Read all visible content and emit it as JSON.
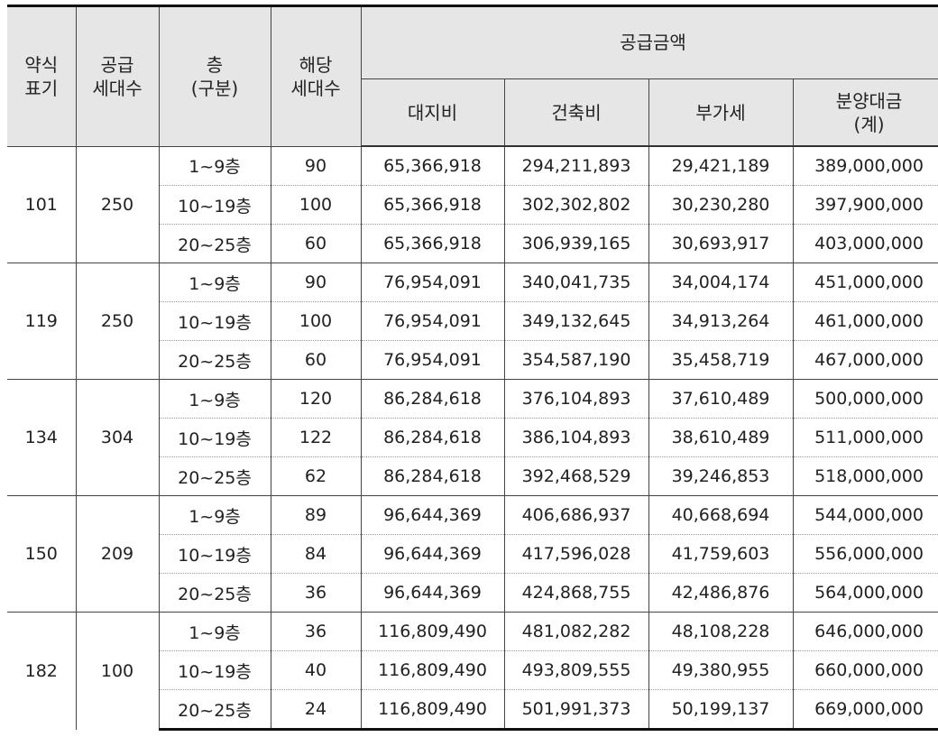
{
  "header": {
    "col0": [
      "약식",
      "표기"
    ],
    "col1": [
      "공급",
      "세대수"
    ],
    "col2": [
      "층",
      "(구분)"
    ],
    "col3": [
      "해당",
      "세대수"
    ],
    "supply_amount": "공급금액",
    "sub": {
      "land": "대지비",
      "building": "건축비",
      "vat": "부가세",
      "total": [
        "분양대금",
        "(계)"
      ]
    }
  },
  "groups": [
    {
      "type": "101",
      "households": "250",
      "rows": [
        {
          "floor": "1~9층",
          "units": "90",
          "land": "65,366,918",
          "building": "294,211,893",
          "vat": "29,421,189",
          "total": "389,000,000"
        },
        {
          "floor": "10~19층",
          "units": "100",
          "land": "65,366,918",
          "building": "302,302,802",
          "vat": "30,230,280",
          "total": "397,900,000"
        },
        {
          "floor": "20~25층",
          "units": "60",
          "land": "65,366,918",
          "building": "306,939,165",
          "vat": "30,693,917",
          "total": "403,000,000"
        }
      ]
    },
    {
      "type": "119",
      "households": "250",
      "rows": [
        {
          "floor": "1~9층",
          "units": "90",
          "land": "76,954,091",
          "building": "340,041,735",
          "vat": "34,004,174",
          "total": "451,000,000"
        },
        {
          "floor": "10~19층",
          "units": "100",
          "land": "76,954,091",
          "building": "349,132,645",
          "vat": "34,913,264",
          "total": "461,000,000"
        },
        {
          "floor": "20~25층",
          "units": "60",
          "land": "76,954,091",
          "building": "354,587,190",
          "vat": "35,458,719",
          "total": "467,000,000"
        }
      ]
    },
    {
      "type": "134",
      "households": "304",
      "rows": [
        {
          "floor": "1~9층",
          "units": "120",
          "land": "86,284,618",
          "building": "376,104,893",
          "vat": "37,610,489",
          "total": "500,000,000"
        },
        {
          "floor": "10~19층",
          "units": "122",
          "land": "86,284,618",
          "building": "386,104,893",
          "vat": "38,610,489",
          "total": "511,000,000"
        },
        {
          "floor": "20~25층",
          "units": "62",
          "land": "86,284,618",
          "building": "392,468,529",
          "vat": "39,246,853",
          "total": "518,000,000"
        }
      ]
    },
    {
      "type": "150",
      "households": "209",
      "rows": [
        {
          "floor": "1~9층",
          "units": "89",
          "land": "96,644,369",
          "building": "406,686,937",
          "vat": "40,668,694",
          "total": "544,000,000"
        },
        {
          "floor": "10~19층",
          "units": "84",
          "land": "96,644,369",
          "building": "417,596,028",
          "vat": "41,759,603",
          "total": "556,000,000"
        },
        {
          "floor": "20~25층",
          "units": "36",
          "land": "96,644,369",
          "building": "424,868,755",
          "vat": "42,486,876",
          "total": "564,000,000"
        }
      ]
    },
    {
      "type": "182",
      "households": "100",
      "rows": [
        {
          "floor": "1~9층",
          "units": "36",
          "land": "116,809,490",
          "building": "481,082,282",
          "vat": "48,108,228",
          "total": "646,000,000"
        },
        {
          "floor": "10~19층",
          "units": "40",
          "land": "116,809,490",
          "building": "493,809,555",
          "vat": "49,380,955",
          "total": "660,000,000"
        },
        {
          "floor": "20~25층",
          "units": "24",
          "land": "116,809,490",
          "building": "501,991,373",
          "vat": "50,199,137",
          "total": "669,000,000"
        }
      ]
    }
  ]
}
